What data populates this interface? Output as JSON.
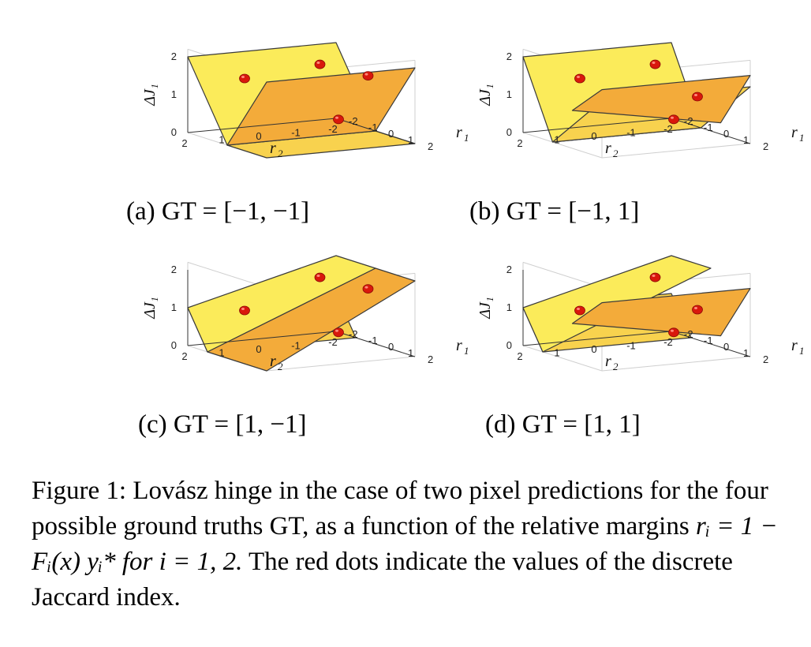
{
  "subcaptions": {
    "a": "(a) GT = [−1, −1]",
    "b": "(b) GT = [−1, 1]",
    "c": "(c) GT = [1, −1]",
    "d": "(d) GT = [1, 1]"
  },
  "axes": {
    "z_label": "Δ",
    "z_label_sub": "J₁",
    "r1_label": "r",
    "r1_sub": "1",
    "r2_label": "r",
    "r2_sub": "2",
    "z_ticks": [
      "0",
      "1",
      "2"
    ],
    "r2_ticks": [
      "2",
      "1",
      "0",
      "-1",
      "-2"
    ],
    "r1_ticks": [
      "-2",
      "-1",
      "0",
      "1",
      "2"
    ]
  },
  "caption": {
    "figure_label": "Figure 1:",
    "text1": "Lovász hinge in the case of two pixel predictions for the four possible ground truths GT, as a function of the relative margins",
    "math": "rᵢ = 1 − Fᵢ(x) yᵢ* for i = 1, 2.",
    "text2": "The red dots indicate the values of the discrete Jaccard index."
  },
  "colors": {
    "face_light": "#fbeb5a",
    "face_mid": "#f8d24e",
    "face_dark": "#f3ab3a",
    "dot": "#d9180c"
  }
}
